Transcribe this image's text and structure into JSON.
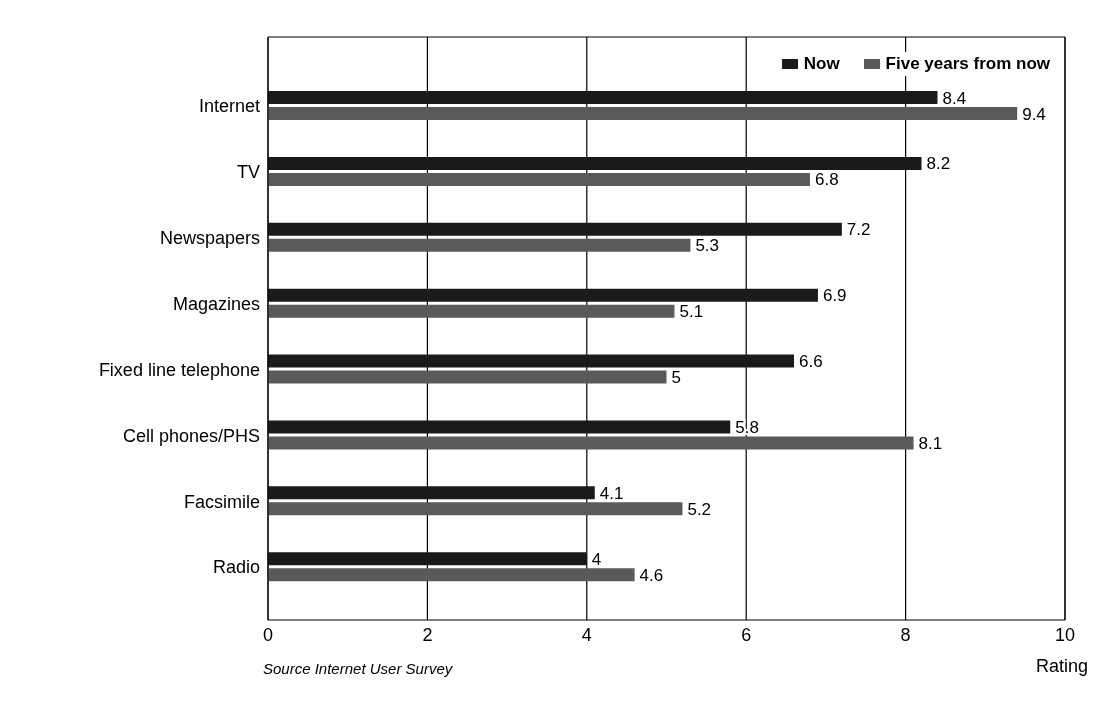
{
  "chart_data": {
    "type": "bar",
    "orientation": "horizontal",
    "xlabel": "Rating",
    "annotations": [
      "Source Internet User Survey"
    ],
    "categories": [
      "Internet",
      "TV",
      "Newspapers",
      "Magazines",
      "Fixed line telephone",
      "Cell phones/PHS",
      "Facsimile",
      "Radio"
    ],
    "series": [
      {
        "name": "Now",
        "color": "#1a1a1a",
        "values": [
          8.4,
          8.2,
          7.2,
          6.9,
          6.6,
          5.8,
          4.1,
          4.0
        ]
      },
      {
        "name": "Five years from now",
        "color": "#5a5a5a",
        "values": [
          9.4,
          6.8,
          5.3,
          5.1,
          5.0,
          8.1,
          5.2,
          4.6
        ]
      }
    ],
    "xlim": [
      0,
      10
    ],
    "xticks": [
      0,
      2,
      4,
      6,
      8,
      10
    ],
    "grid": "x",
    "legend": "top right",
    "data_labels": true
  }
}
